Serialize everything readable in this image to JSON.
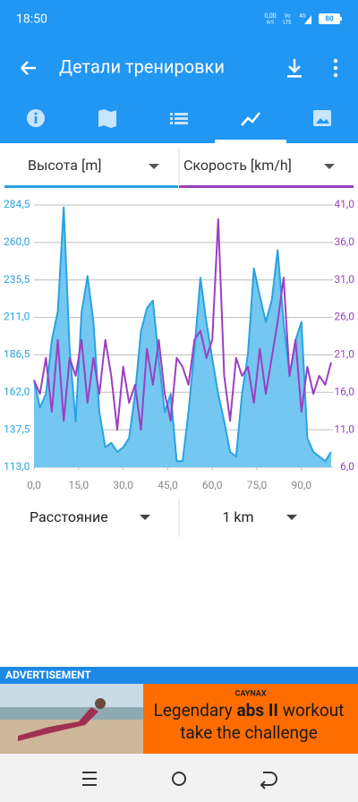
{
  "status_bar": {
    "time": "18:50",
    "net_speed": "0,00",
    "net_unit": "B/S",
    "volte_top": "Vo",
    "volte_bottom": "LTE",
    "network": "4G",
    "battery": "80"
  },
  "app_bar": {
    "title": "Детали тренировки"
  },
  "chart_data": {
    "type": "combo",
    "x": [
      0,
      2,
      4,
      6,
      8,
      10,
      12,
      14,
      16,
      18,
      20,
      22,
      24,
      26,
      28,
      30,
      32,
      34,
      36,
      38,
      40,
      42,
      44,
      46,
      48,
      50,
      52,
      54,
      56,
      58,
      60,
      62,
      64,
      66,
      68,
      70,
      72,
      74,
      76,
      78,
      80,
      82,
      84,
      86,
      88,
      90,
      92,
      94,
      96,
      98,
      100
    ],
    "series": [
      {
        "name": "Высота [m]",
        "type": "area",
        "color": "#29a3e0",
        "fill": "#74c7f0",
        "values": [
          170,
          152,
          161,
          196,
          215,
          283,
          190,
          143,
          214,
          238,
          208,
          149,
          126,
          129,
          123,
          126,
          132,
          161,
          202,
          217,
          222,
          184,
          149,
          161,
          117,
          117,
          149,
          190,
          237,
          208,
          184,
          161,
          143,
          123,
          120,
          161,
          187,
          243,
          225,
          208,
          222,
          255,
          208,
          173,
          196,
          208,
          132,
          123,
          120,
          117,
          123
        ]
      },
      {
        "name": "Скорость [km/h]",
        "type": "line",
        "axis": "y2",
        "color": "#9b3fc0",
        "values": [
          17.6,
          15.8,
          20.6,
          13.4,
          23,
          12.2,
          20.6,
          18.2,
          23,
          14.6,
          20.6,
          15.8,
          23,
          18.2,
          11,
          19.4,
          14.6,
          17,
          11,
          21.8,
          17,
          23,
          15.8,
          12.2,
          20.6,
          19.4,
          17,
          23,
          24.2,
          20.6,
          23,
          39.1,
          18.2,
          12.2,
          20.6,
          18.2,
          19.4,
          14.6,
          21.8,
          15.8,
          20.6,
          25.4,
          31.3,
          18.2,
          23,
          13.4,
          19.4,
          15.8,
          18.2,
          17,
          20
        ]
      }
    ],
    "xlim": [
      0,
      100
    ],
    "xticks": [
      {
        "value": 0,
        "label": "0,0"
      },
      {
        "value": 15,
        "label": "15,0"
      },
      {
        "value": 30,
        "label": "30,0"
      },
      {
        "value": 45,
        "label": "45,0"
      },
      {
        "value": 60,
        "label": "60,0"
      },
      {
        "value": 75,
        "label": "75,0"
      },
      {
        "value": 90,
        "label": "90,0"
      }
    ],
    "ylim": [
      113,
      284.5
    ],
    "yticks": [
      {
        "value": 113,
        "label": "113,0"
      },
      {
        "value": 137.5,
        "label": "137,5"
      },
      {
        "value": 162,
        "label": "162,0"
      },
      {
        "value": 186.5,
        "label": "186,5"
      },
      {
        "value": 211,
        "label": "211,0"
      },
      {
        "value": 235.5,
        "label": "235,5"
      },
      {
        "value": 260,
        "label": "260,0"
      },
      {
        "value": 284.5,
        "label": "284,5"
      }
    ],
    "y2lim": [
      6,
      41
    ],
    "y2ticks": [
      {
        "value": 6,
        "label": "6,0"
      },
      {
        "value": 11,
        "label": "11,0"
      },
      {
        "value": 16,
        "label": "16,0"
      },
      {
        "value": 21,
        "label": "21,0"
      },
      {
        "value": 26,
        "label": "26,0"
      },
      {
        "value": 31,
        "label": "31,0"
      },
      {
        "value": 36,
        "label": "36,0"
      },
      {
        "value": 41,
        "label": "41,0"
      }
    ],
    "grid": true
  },
  "x_selector": {
    "label": "Расстояние",
    "unit": "1 km"
  },
  "ad": {
    "label": "ADVERTISEMENT",
    "brand": "CAYNAX",
    "headline": [
      "Legendary",
      "abs II",
      "workout"
    ],
    "tagline": "take the challenge"
  }
}
